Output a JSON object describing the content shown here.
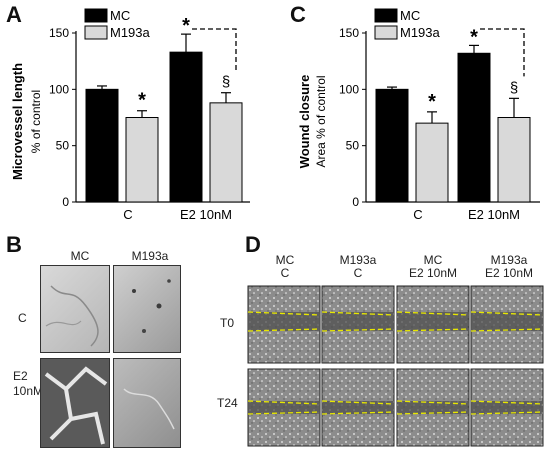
{
  "panels": {
    "A": "A",
    "B": "B",
    "C": "C",
    "D": "D"
  },
  "chart_data": [
    {
      "panel": "A",
      "type": "bar",
      "categories": [
        "C",
        "E2 10nM"
      ],
      "series": [
        {
          "name": "MC",
          "color": "#000000",
          "values": [
            100,
            133
          ],
          "errors": [
            3,
            16
          ]
        },
        {
          "name": "M193a",
          "color": "#d9d9d9",
          "values": [
            75,
            88
          ],
          "errors": [
            6,
            9
          ]
        }
      ],
      "ylabel_line1": "Microvessel length",
      "ylabel_line2": "% of control",
      "ylim": [
        0,
        150
      ],
      "yticks": [
        "0",
        "50",
        "100",
        "150"
      ],
      "legend": "top-left",
      "annotations": {
        "star_c": "*",
        "star_e2": "*",
        "section": "§"
      }
    },
    {
      "panel": "C",
      "type": "bar",
      "categories": [
        "C",
        "E2 10nM"
      ],
      "series": [
        {
          "name": "MC",
          "color": "#000000",
          "values": [
            100,
            132
          ],
          "errors": [
            2,
            7
          ]
        },
        {
          "name": "M193a",
          "color": "#d9d9d9",
          "values": [
            70,
            75
          ],
          "errors": [
            10,
            17
          ]
        }
      ],
      "ylabel_line1": "Wound closure",
      "ylabel_line2": "Area % of control",
      "ylim": [
        0,
        150
      ],
      "yticks": [
        "0",
        "50",
        "100",
        "150"
      ],
      "legend": "top-left",
      "annotations": {
        "star_c": "*",
        "star_e2": "*",
        "section": "§"
      }
    }
  ],
  "panelB": {
    "col_labels": [
      "MC",
      "M193a"
    ],
    "row_labels": [
      "C",
      "E2\n10nM"
    ]
  },
  "panelD": {
    "col_labels": [
      "MC\nC",
      "M193a\nC",
      "MC\nE2 10nM",
      "M193a\nE2 10nM"
    ],
    "row_labels": [
      "T0",
      "T24"
    ]
  }
}
